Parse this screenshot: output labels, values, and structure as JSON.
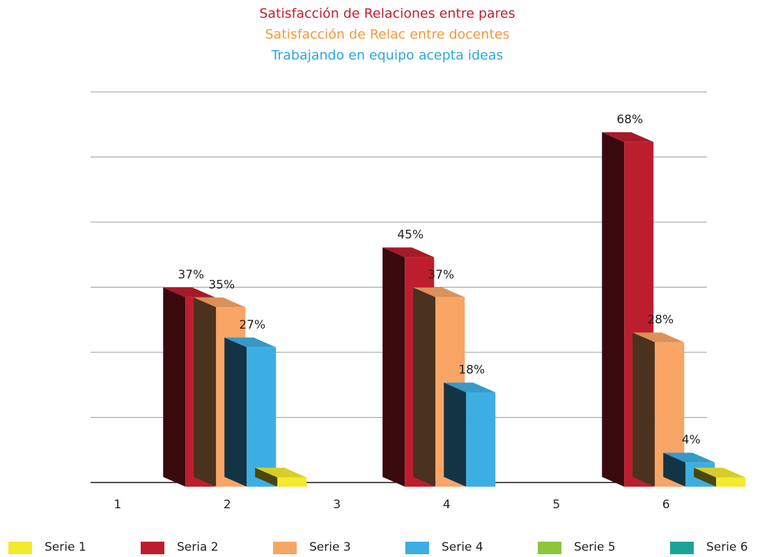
{
  "chart_data": {
    "type": "bar3d",
    "titles": [
      "Satisfacción de Relaciones entre pares",
      "Satisfacción de Relac entre docentes",
      "Trabajando en equipo acepta ideas"
    ],
    "title_colors": [
      "#c0202f",
      "#f39a3c",
      "#2aa7dc"
    ],
    "categories": [
      "1",
      "2",
      "3",
      "4",
      "5",
      "6"
    ],
    "series": [
      {
        "name": "Serie 1",
        "color": "#f3e92d",
        "values": [
          null,
          1,
          null,
          null,
          null,
          1
        ],
        "value_labels": [
          null,
          null,
          null,
          null,
          null,
          null
        ]
      },
      {
        "name": "Seria 2",
        "color": "#bd1e2d",
        "values": [
          null,
          37,
          null,
          45,
          null,
          68
        ],
        "value_labels": [
          null,
          "37%",
          null,
          "45%",
          null,
          "68%"
        ]
      },
      {
        "name": "Serie 3",
        "color": "#f8a566",
        "values": [
          null,
          35,
          null,
          37,
          null,
          28
        ],
        "value_labels": [
          null,
          "35%",
          null,
          "37%",
          null,
          "28%"
        ]
      },
      {
        "name": "Serie 4",
        "color": "#3daee3",
        "values": [
          null,
          27,
          null,
          18,
          null,
          4
        ],
        "value_labels": [
          null,
          "27%",
          null,
          "18%",
          null,
          "4%"
        ]
      },
      {
        "name": "Serie 5",
        "color": "#8cc63f",
        "values": [
          null,
          null,
          null,
          null,
          null,
          null
        ],
        "value_labels": [
          null,
          null,
          null,
          null,
          null,
          null
        ]
      },
      {
        "name": "Serie 6",
        "color": "#1aa396",
        "values": [
          null,
          null,
          null,
          null,
          null,
          null
        ],
        "value_labels": [
          null,
          null,
          null,
          null,
          null,
          null
        ]
      }
    ],
    "bar_order": [
      1,
      2,
      3,
      0
    ],
    "ylim": [
      0,
      78
    ],
    "yticks": [
      0,
      13,
      26,
      39,
      52,
      65,
      78
    ],
    "grid": true
  }
}
